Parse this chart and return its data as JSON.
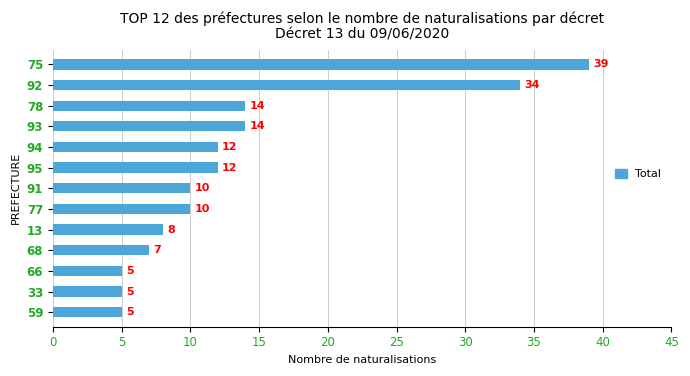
{
  "title_line1": "TOP 12 des préfectures selon le nombre de naturalisations par décret",
  "title_line2": "Décret 13 du 09/06/2020",
  "xlabel": "Nombre de naturalisations",
  "ylabel": "PREFECTURE",
  "categories": [
    "75",
    "92",
    "78",
    "93",
    "94",
    "95",
    "91",
    "77",
    "13",
    "68",
    "66",
    "33",
    "59"
  ],
  "values": [
    39,
    34,
    14,
    14,
    12,
    12,
    10,
    10,
    8,
    7,
    5,
    5,
    5
  ],
  "bar_color": "#4da6d8",
  "label_color": "#ff0000",
  "ytick_color_green": "#22aa22",
  "xlim": [
    0,
    45
  ],
  "xticks": [
    0,
    5,
    10,
    15,
    20,
    25,
    30,
    35,
    40,
    45
  ],
  "legend_label": "Total",
  "legend_color": "#4da6d8",
  "background_color": "#ffffff",
  "title_fontsize": 10,
  "label_fontsize": 8,
  "tick_fontsize": 8.5,
  "bar_height": 0.5
}
